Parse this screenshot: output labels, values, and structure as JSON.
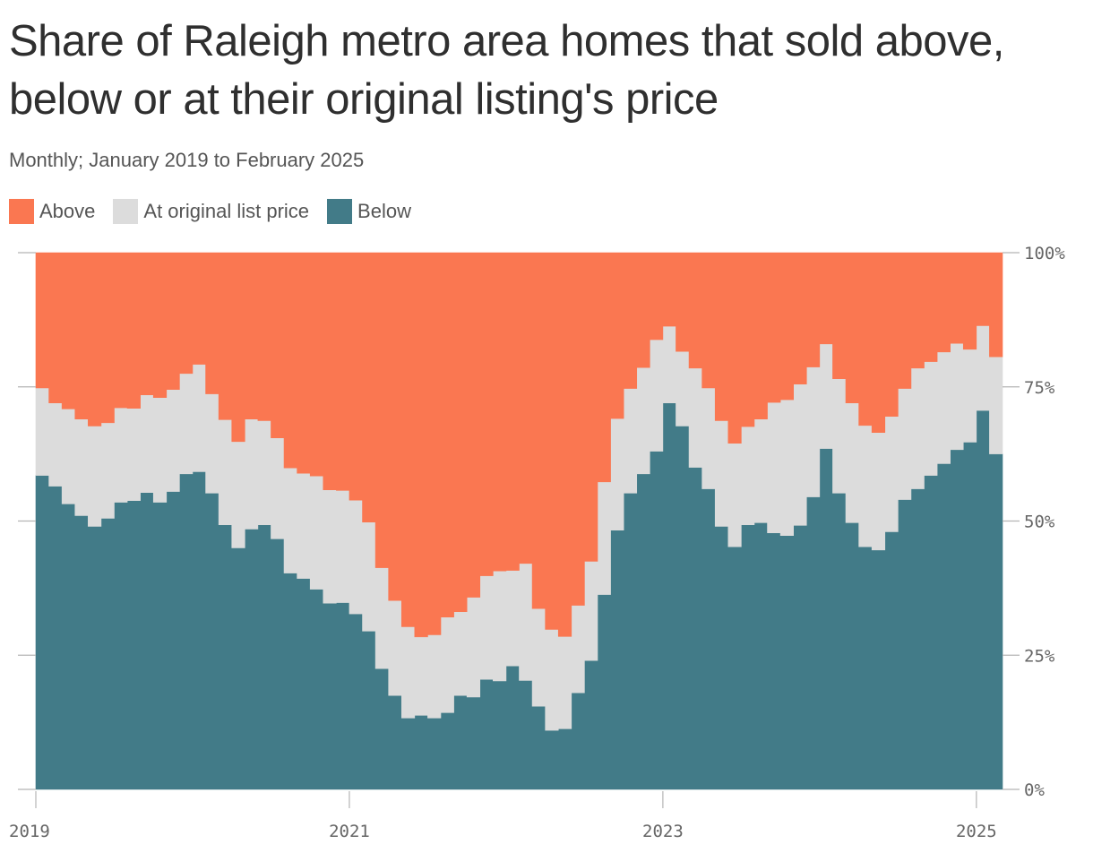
{
  "colors": {
    "above": "#fa7751",
    "at": "#dcdcdc",
    "below": "#427b88",
    "grid": "#b5b5b5",
    "text": "#666666"
  },
  "chart_data": {
    "type": "area",
    "stacked": true,
    "step": true,
    "title": "Share of Raleigh metro area homes that sold above, below or at their original listing's price",
    "subtitle": "Monthly; January 2019 to February 2025",
    "legend": [
      {
        "key": "above",
        "label": "Above"
      },
      {
        "key": "at",
        "label": "At original list price"
      },
      {
        "key": "below",
        "label": "Below"
      }
    ],
    "legend_position": "top-left",
    "x_start": "2019-01",
    "x_end": "2025-02",
    "x_ticks": [
      "2019",
      "2021",
      "2023",
      "2025"
    ],
    "y_ticks": [
      "100%",
      "75%",
      "50%",
      "25%",
      "0%"
    ],
    "ylim": [
      0,
      100
    ],
    "y_position": "right",
    "grid": false,
    "series": [
      {
        "name": "Below",
        "values": [
          58.5,
          56.5,
          53.2,
          51.0,
          49.0,
          50.5,
          53.5,
          53.8,
          55.3,
          53.5,
          55.5,
          58.8,
          59.2,
          55.2,
          49.3,
          45.0,
          48.5,
          49.3,
          46.7,
          40.3,
          39.3,
          37.3,
          34.7,
          34.8,
          32.7,
          29.5,
          22.5,
          17.5,
          13.3,
          13.8,
          13.3,
          14.3,
          17.5,
          17.2,
          20.5,
          20.2,
          23.0,
          20.3,
          15.5,
          11.0,
          11.3,
          18.0,
          24.0,
          36.3,
          48.3,
          55.2,
          58.8,
          63.0,
          72.0,
          67.7,
          60.0,
          56.0,
          49.0,
          45.2,
          49.3,
          49.7,
          47.8,
          47.3,
          49.2,
          54.5,
          63.5,
          55.2,
          49.7,
          45.2,
          44.6,
          48.0,
          54.0,
          56.0,
          58.5,
          60.7,
          63.3,
          64.7,
          70.6,
          62.5
        ]
      },
      {
        "name": "At original list price",
        "values": [
          16.3,
          15.5,
          17.7,
          18.0,
          18.7,
          17.8,
          17.6,
          17.2,
          18.2,
          19.5,
          19.0,
          18.7,
          20.0,
          18.5,
          19.6,
          19.8,
          20.5,
          19.4,
          18.8,
          19.6,
          19.6,
          21.1,
          21.1,
          20.9,
          21.2,
          20.3,
          18.8,
          17.7,
          17.0,
          14.6,
          15.5,
          17.8,
          15.6,
          18.6,
          19.3,
          20.5,
          17.8,
          21.8,
          18.2,
          18.8,
          17.2,
          16.3,
          18.5,
          21.0,
          20.8,
          19.5,
          19.8,
          20.8,
          14.3,
          13.9,
          18.5,
          18.8,
          19.7,
          19.3,
          18.3,
          19.3,
          24.3,
          25.3,
          26.3,
          24.2,
          19.5,
          21.3,
          22.3,
          22.6,
          21.9,
          21.5,
          20.7,
          22.5,
          21.2,
          20.8,
          19.8,
          17.3,
          15.8,
          18.1
        ]
      },
      {
        "name": "Above",
        "values": [
          25.2,
          28.0,
          29.1,
          31.0,
          32.3,
          31.7,
          28.9,
          29.0,
          26.5,
          27.0,
          25.5,
          22.5,
          20.8,
          26.3,
          31.1,
          35.2,
          31.0,
          31.3,
          34.5,
          40.1,
          41.1,
          41.6,
          44.2,
          44.3,
          46.1,
          50.2,
          58.7,
          64.8,
          69.7,
          71.6,
          71.2,
          67.9,
          66.9,
          64.2,
          60.2,
          59.3,
          59.2,
          57.9,
          66.3,
          70.2,
          71.5,
          65.7,
          57.5,
          42.7,
          30.9,
          25.3,
          21.4,
          16.2,
          13.7,
          18.4,
          21.5,
          25.2,
          31.3,
          35.5,
          32.4,
          31.0,
          27.9,
          27.4,
          24.5,
          21.3,
          17.0,
          23.5,
          28.0,
          32.2,
          33.5,
          30.5,
          25.3,
          21.5,
          20.3,
          18.5,
          16.9,
          18.0,
          13.6,
          19.4
        ]
      }
    ]
  }
}
